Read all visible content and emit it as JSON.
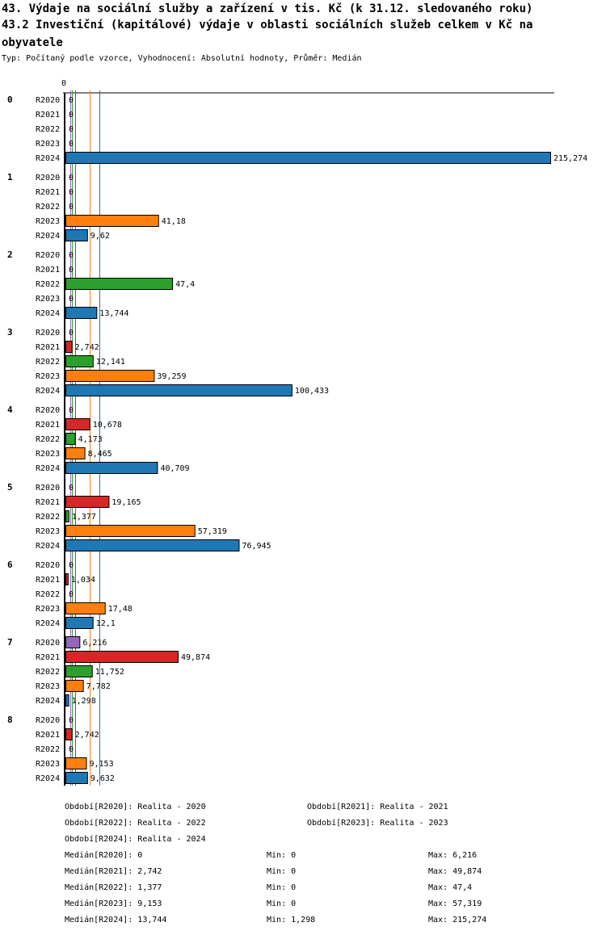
{
  "title_line1": "43. Výdaje na sociální služby a zařízení v tis. Kč (k 31.12. sledovaného roku)",
  "title_line2": "43.2 Investiční (kapitálové) výdaje v oblasti sociálních služeb celkem v Kč na obyvatele",
  "subtitle": "Typ: Počítaný podle vzorce, Vyhodnocení: Absolutní hodnoty, Průměr: Medián",
  "chart_data": {
    "type": "bar",
    "orientation": "horizontal",
    "axis_zero_label": "0",
    "xlim": [
      0,
      215.274
    ],
    "categories": [
      "0",
      "1",
      "2",
      "3",
      "4",
      "5",
      "6",
      "7",
      "8"
    ],
    "series": [
      {
        "name": "R2020",
        "color": "#9467bd",
        "values": [
          0,
          0,
          0,
          0,
          0,
          0,
          0,
          6.216,
          0
        ],
        "labels": [
          "0",
          "0",
          "0",
          "0",
          "0",
          "0",
          "0",
          "6,216",
          "0"
        ]
      },
      {
        "name": "R2021",
        "color": "#d62728",
        "values": [
          0,
          0,
          0,
          2.742,
          10.678,
          19.165,
          1.034,
          49.874,
          2.742
        ],
        "labels": [
          "0",
          "0",
          "0",
          "2,742",
          "10,678",
          "19,165",
          "1,034",
          "49,874",
          "2,742"
        ]
      },
      {
        "name": "R2022",
        "color": "#2ca02c",
        "values": [
          0,
          0,
          47.4,
          12.141,
          4.173,
          1.377,
          0,
          11.752,
          0
        ],
        "labels": [
          "0",
          "0",
          "47,4",
          "12,141",
          "4,173",
          "1,377",
          "0",
          "11,752",
          "0"
        ]
      },
      {
        "name": "R2023",
        "color": "#ff7f0e",
        "values": [
          0,
          41.18,
          0,
          39.259,
          8.465,
          57.319,
          17.48,
          7.782,
          9.153
        ],
        "labels": [
          "0",
          "41,18",
          "0",
          "39,259",
          "8,465",
          "57,319",
          "17,48",
          "7,782",
          "9,153"
        ]
      },
      {
        "name": "R2024",
        "color": "#1f77b4",
        "values": [
          215.274,
          9.62,
          13.744,
          100.433,
          40.709,
          76.945,
          12.1,
          1.298,
          9.632
        ],
        "labels": [
          "215,274",
          "9,62",
          "13,744",
          "100,433",
          "40,709",
          "76,945",
          "12,1",
          "1,298",
          "9,632"
        ]
      }
    ],
    "median_lines": [
      {
        "series": "R2020",
        "value": 0
      },
      {
        "series": "R2021",
        "value": 2.742
      },
      {
        "series": "R2022",
        "value": 1.377
      },
      {
        "series": "R2023",
        "value": 9.153
      },
      {
        "series": "R2024",
        "value": 13.744
      }
    ]
  },
  "legend": {
    "periods": [
      "Období[R2020]: Realita - 2020",
      "Období[R2021]: Realita - 2021",
      "Období[R2022]: Realita - 2022",
      "Období[R2023]: Realita - 2023",
      "Období[R2024]: Realita - 2024"
    ],
    "stats": [
      {
        "median": "Medián[R2020]: 0",
        "min": "Min: 0",
        "max": "Max: 6,216"
      },
      {
        "median": "Medián[R2021]: 2,742",
        "min": "Min: 0",
        "max": "Max: 49,874"
      },
      {
        "median": "Medián[R2022]: 1,377",
        "min": "Min: 0",
        "max": "Max: 47,4"
      },
      {
        "median": "Medián[R2023]: 9,153",
        "min": "Min: 0",
        "max": "Max: 57,319"
      },
      {
        "median": "Medián[R2024]: 13,744",
        "min": "Min: 1,298",
        "max": "Max: 215,274"
      }
    ]
  }
}
